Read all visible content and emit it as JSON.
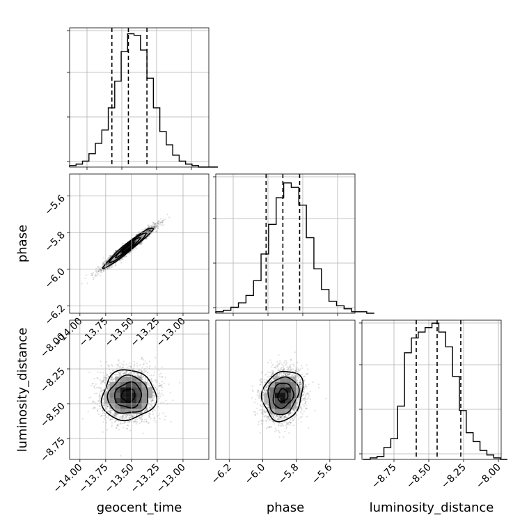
{
  "chart_data": [
    {
      "type": "histogram",
      "panel": "geocent_time-1d",
      "bin_start": -14.1,
      "bin_width": 0.0625,
      "counts": [
        1,
        2,
        4,
        9,
        16,
        25,
        40,
        58,
        78,
        90,
        89,
        79,
        60,
        40,
        24,
        15,
        8,
        4,
        2,
        1,
        0,
        0,
        0
      ],
      "quantile_lines": [
        -13.69,
        -13.53,
        -13.35
      ],
      "xlim": [
        -14.1,
        -12.75
      ],
      "ylim": [
        0,
        94
      ],
      "grid": true,
      "show_tick_labels": false
    },
    {
      "type": "histogram",
      "panel": "phase-1d",
      "bin_start": -6.28,
      "bin_width": 0.045,
      "counts": [
        1,
        2,
        4,
        7,
        12,
        22,
        40,
        60,
        78,
        88,
        85,
        73,
        51,
        30,
        16,
        8,
        5,
        3,
        1,
        1,
        0
      ],
      "quantile_lines": [
        -5.98,
        -5.88,
        -5.78
      ],
      "xlim": [
        -6.28,
        -5.45
      ],
      "ylim": [
        0,
        94
      ],
      "grid": true,
      "show_tick_labels": false
    },
    {
      "type": "histogram",
      "panel": "luminosity_distance-1d",
      "bin_start": -8.97,
      "bin_width": 0.0493,
      "counts": [
        0,
        1,
        2,
        8,
        14,
        36,
        72,
        82,
        86,
        89,
        92,
        86,
        76,
        56,
        33,
        18,
        12,
        6,
        3,
        1,
        0
      ],
      "quantile_lines": [
        -8.59,
        -8.44,
        -8.27
      ],
      "xlim": [
        -8.98,
        -7.98
      ],
      "ylim": [
        0,
        94
      ],
      "xticks": [
        -8.75,
        -8.5,
        -8.25,
        -8.0
      ],
      "xtick_labels": [
        "−8.75",
        "−8.50",
        "−8.25",
        "−8.00"
      ],
      "xlabel": "luminosity_distance",
      "grid": true
    },
    {
      "type": "scatter-density",
      "panel": "phase-vs-geocent_time",
      "x_param": "geocent_time",
      "y_param": "phase",
      "center": [
        -13.53,
        -5.88
      ],
      "sigma": [
        0.12,
        0.055
      ],
      "correlation": 0.97,
      "n_points": 2600,
      "contour_levels": [
        0.5,
        1.0,
        1.5,
        2.0
      ],
      "xlim": [
        -14.1,
        -12.75
      ],
      "ylim": [
        -6.24,
        -5.48
      ],
      "xticks": [
        -14.0,
        -13.75,
        -13.5,
        -13.25,
        -13.0
      ],
      "xtick_labels": [
        "−14.00",
        "−13.75",
        "−13.50",
        "−13.25",
        "−13.00"
      ],
      "yticks": [
        -5.6,
        -5.8,
        -6.0,
        -6.2
      ],
      "ytick_labels": [
        "−5.6",
        "−5.8",
        "−6.0",
        "−6.2"
      ],
      "ylabel": "phase",
      "grid": true
    },
    {
      "type": "scatter-density",
      "panel": "luminosity_distance-vs-geocent_time",
      "x_param": "geocent_time",
      "y_param": "luminosity_distance",
      "center": [
        -13.53,
        -8.44
      ],
      "sigma": [
        0.13,
        0.09
      ],
      "correlation": 0.05,
      "n_points": 2600,
      "contour_levels": [
        0.5,
        1.0,
        1.5,
        2.0
      ],
      "xlim": [
        -14.1,
        -12.75
      ],
      "ylim": [
        -8.9,
        -7.9
      ],
      "xticks": [
        -14.0,
        -13.75,
        -13.5,
        -13.25,
        -13.0
      ],
      "xtick_labels": [
        "−14.00",
        "−13.75",
        "−13.50",
        "−13.25",
        "−13.00"
      ],
      "yticks": [
        -8.0,
        -8.25,
        -8.5,
        -8.75
      ],
      "ytick_labels": [
        "−8.00",
        "−8.25",
        "−8.50",
        "−8.75"
      ],
      "xlabel": "geocent_time",
      "ylabel": "luminosity_distance",
      "grid": true
    },
    {
      "type": "scatter-density",
      "panel": "luminosity_distance-vs-phase",
      "x_param": "phase",
      "y_param": "luminosity_distance",
      "center": [
        -5.88,
        -8.44
      ],
      "sigma": [
        0.06,
        0.09
      ],
      "correlation": 0.15,
      "n_points": 2600,
      "contour_levels": [
        0.5,
        1.0,
        1.5,
        2.0
      ],
      "xlim": [
        -6.28,
        -5.45
      ],
      "ylim": [
        -8.9,
        -7.9
      ],
      "xticks": [
        -6.2,
        -6.0,
        -5.8,
        -5.6
      ],
      "xtick_labels": [
        "−6.2",
        "−6.0",
        "−5.8",
        "−5.6"
      ],
      "xlabel": "phase",
      "grid": true
    }
  ]
}
